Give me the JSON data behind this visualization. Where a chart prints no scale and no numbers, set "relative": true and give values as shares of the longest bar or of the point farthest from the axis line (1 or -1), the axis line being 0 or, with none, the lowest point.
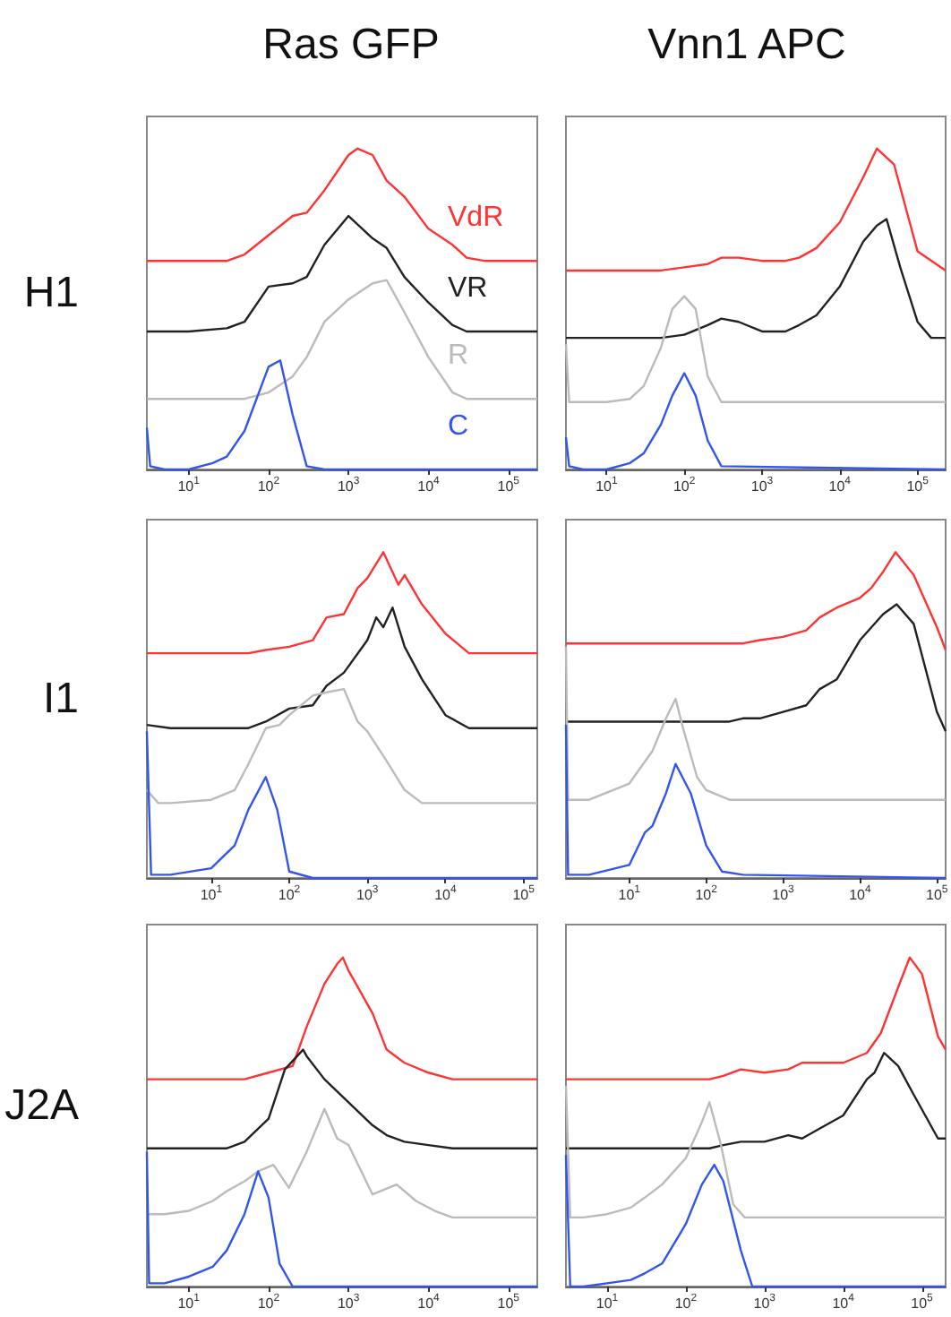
{
  "chart_data": [
    {
      "type": "line",
      "title": "Ras GFP",
      "ylabel": "H1",
      "relative": true,
      "log": "x",
      "tick_labels": "x",
      "marker": "none",
      "xlim": [
        3,
        230000
      ],
      "xticks": [
        {
          "value": 10,
          "label": "10$^{1}$"
        },
        {
          "value": 100,
          "label": "10$^{2}$"
        },
        {
          "value": 1000,
          "label": "10$^{3}$"
        },
        {
          "value": 10000,
          "label": "10$^{4}$"
        },
        {
          "value": 100000,
          "label": "10$^{5}$"
        }
      ],
      "series": [
        {
          "name": "VdR",
          "color": "#ff3333",
          "x": [
            3,
            10,
            20,
            30,
            50,
            100,
            200,
            300,
            500,
            1000,
            1300,
            2000,
            3000,
            5000,
            10000,
            20000,
            30000,
            50000,
            230000
          ],
          "values": [
            0.65,
            0.65,
            0.65,
            0.65,
            0.67,
            0.73,
            0.79,
            0.8,
            0.87,
            0.98,
            1,
            0.98,
            0.9,
            0.85,
            0.75,
            0.7,
            0.66,
            0.65,
            0.65
          ]
        },
        {
          "name": "VR",
          "color": "#222222",
          "x": [
            3,
            10,
            30,
            50,
            100,
            200,
            300,
            500,
            1000,
            2000,
            3000,
            5000,
            10000,
            20000,
            30000,
            230000
          ],
          "values": [
            0.43,
            0.43,
            0.44,
            0.46,
            0.57,
            0.58,
            0.6,
            0.7,
            0.79,
            0.72,
            0.69,
            0.6,
            0.52,
            0.45,
            0.43,
            0.43
          ]
        },
        {
          "name": "R",
          "color": "#bbbbbb",
          "x": [
            3,
            50,
            100,
            200,
            300,
            500,
            1000,
            2000,
            3000,
            5000,
            10000,
            20000,
            30000,
            230000
          ],
          "values": [
            0.22,
            0.22,
            0.24,
            0.29,
            0.35,
            0.46,
            0.53,
            0.58,
            0.59,
            0.49,
            0.35,
            0.24,
            0.22,
            0.22
          ]
        },
        {
          "name": "C",
          "color": "#3355ee",
          "x": [
            3,
            3.3,
            5,
            10,
            20,
            30,
            50,
            100,
            140,
            200,
            300,
            500,
            230000
          ],
          "values": [
            0.13,
            0.01,
            0,
            0,
            0.02,
            0.04,
            0.12,
            0.32,
            0.34,
            0.17,
            0.01,
            0,
            0
          ]
        }
      ]
    },
    {
      "type": "line",
      "title": "Vnn1 APC",
      "relative": true,
      "log": "x",
      "tick_labels": "x",
      "marker": "none",
      "xlim": [
        3,
        230000
      ],
      "xticks": [
        {
          "value": 10,
          "label": "10$^{1}$"
        },
        {
          "value": 100,
          "label": "10$^{2}$"
        },
        {
          "value": 1000,
          "label": "10$^{3}$"
        },
        {
          "value": 10000,
          "label": "10$^{4}$"
        },
        {
          "value": 100000,
          "label": "10$^{5}$"
        }
      ],
      "series": [
        {
          "color": "#ff3333",
          "x": [
            3,
            50,
            100,
            200,
            300,
            500,
            1000,
            2000,
            3000,
            5000,
            10000,
            20000,
            30000,
            50000,
            100000,
            230000
          ],
          "values": [
            0.62,
            0.62,
            0.63,
            0.64,
            0.66,
            0.66,
            0.65,
            0.65,
            0.66,
            0.69,
            0.77,
            0.91,
            1,
            0.95,
            0.68,
            0.62
          ]
        },
        {
          "color": "#222222",
          "x": [
            3,
            50,
            100,
            200,
            300,
            500,
            1000,
            2000,
            3000,
            5000,
            10000,
            20000,
            30000,
            40000,
            60000,
            100000,
            150000,
            230000
          ],
          "values": [
            0.41,
            0.41,
            0.42,
            0.45,
            0.47,
            0.46,
            0.43,
            0.43,
            0.45,
            0.48,
            0.57,
            0.71,
            0.76,
            0.78,
            0.63,
            0.46,
            0.41,
            0.41
          ]
        },
        {
          "color": "#bbbbbb",
          "x": [
            3,
            3.3,
            5,
            10,
            20,
            30,
            50,
            70,
            100,
            140,
            200,
            300,
            230000
          ],
          "values": [
            0.39,
            0.21,
            0.21,
            0.21,
            0.22,
            0.26,
            0.38,
            0.5,
            0.54,
            0.5,
            0.29,
            0.21,
            0.21
          ]
        },
        {
          "color": "#3355ee",
          "x": [
            3,
            3.3,
            5,
            10,
            20,
            30,
            50,
            70,
            100,
            140,
            200,
            300,
            230000
          ],
          "values": [
            0.1,
            0.01,
            0,
            0,
            0.02,
            0.05,
            0.14,
            0.23,
            0.3,
            0.23,
            0.09,
            0.01,
            0
          ]
        }
      ]
    },
    {
      "type": "line",
      "ylabel": "I1",
      "relative": true,
      "log": "x",
      "tick_labels": "x",
      "marker": "none",
      "xlim": [
        1.5,
        150000
      ],
      "xticks": [
        {
          "value": 10,
          "label": "10$^{1}$"
        },
        {
          "value": 100,
          "label": "10$^{2}$"
        },
        {
          "value": 1000,
          "label": "10$^{3}$"
        },
        {
          "value": 10000,
          "label": "10$^{4}$"
        },
        {
          "value": 100000,
          "label": "10$^{5}$"
        }
      ],
      "series": [
        {
          "color": "#ff3333",
          "x": [
            1.5,
            30,
            50,
            100,
            200,
            300,
            500,
            750,
            1000,
            1600,
            2500,
            3000,
            5000,
            10000,
            20000,
            150000
          ],
          "values": [
            0.69,
            0.69,
            0.7,
            0.71,
            0.73,
            0.8,
            0.81,
            0.89,
            0.92,
            1,
            0.9,
            0.93,
            0.84,
            0.75,
            0.69,
            0.69
          ]
        },
        {
          "color": "#222222",
          "x": [
            1.5,
            3,
            10,
            20,
            30,
            50,
            100,
            200,
            300,
            500,
            1000,
            1300,
            1600,
            2100,
            3000,
            5000,
            10000,
            20000,
            150000
          ],
          "values": [
            0.47,
            0.46,
            0.46,
            0.46,
            0.46,
            0.48,
            0.52,
            0.53,
            0.59,
            0.63,
            0.73,
            0.8,
            0.77,
            0.83,
            0.71,
            0.61,
            0.5,
            0.46,
            0.46
          ]
        },
        {
          "color": "#bbbbbb",
          "x": [
            1.5,
            2.1,
            3,
            10,
            20,
            30,
            50,
            75,
            100,
            200,
            300,
            500,
            750,
            1000,
            1650,
            3000,
            5000,
            10000,
            150000
          ],
          "values": [
            0.27,
            0.23,
            0.23,
            0.24,
            0.27,
            0.35,
            0.46,
            0.47,
            0.5,
            0.56,
            0.57,
            0.58,
            0.48,
            0.45,
            0.37,
            0.27,
            0.23,
            0.23,
            0.23
          ]
        },
        {
          "color": "#3355ee",
          "x": [
            1.5,
            1.7,
            3,
            10,
            20,
            30,
            50,
            70,
            100,
            200,
            150000
          ],
          "values": [
            0.45,
            0.01,
            0.01,
            0.03,
            0.1,
            0.21,
            0.31,
            0.21,
            0.02,
            0,
            0
          ]
        }
      ]
    },
    {
      "type": "line",
      "relative": true,
      "log": "x",
      "tick_labels": "x",
      "marker": "none",
      "xlim": [
        1.5,
        130000
      ],
      "xticks": [
        {
          "value": 10,
          "label": "10$^{1}$"
        },
        {
          "value": 100,
          "label": "10$^{2}$"
        },
        {
          "value": 1000,
          "label": "10$^{3}$"
        },
        {
          "value": 10000,
          "label": "10$^{4}$"
        },
        {
          "value": 100000,
          "label": "10$^{5}$"
        }
      ],
      "series": [
        {
          "color": "#ff3333",
          "x": [
            1.5,
            200,
            300,
            500,
            1000,
            2000,
            3000,
            5000,
            10000,
            14000,
            20000,
            29000,
            50000,
            100000,
            130000
          ],
          "values": [
            0.72,
            0.72,
            0.72,
            0.73,
            0.74,
            0.76,
            0.8,
            0.83,
            0.86,
            0.89,
            0.94,
            1,
            0.93,
            0.77,
            0.7
          ]
        },
        {
          "color": "#222222",
          "x": [
            1.5,
            200,
            300,
            500,
            1000,
            2000,
            3000,
            5000,
            10000,
            20000,
            30000,
            50000,
            100000,
            130000
          ],
          "values": [
            0.48,
            0.48,
            0.49,
            0.49,
            0.51,
            0.53,
            0.58,
            0.61,
            0.73,
            0.81,
            0.84,
            0.78,
            0.51,
            0.45
          ]
        },
        {
          "color": "#bbbbbb",
          "x": [
            1.5,
            1.6,
            3,
            10,
            20,
            30,
            40,
            50,
            76,
            100,
            200,
            130000
          ],
          "values": [
            0.71,
            0.24,
            0.24,
            0.29,
            0.39,
            0.49,
            0.55,
            0.46,
            0.31,
            0.27,
            0.24,
            0.24
          ]
        },
        {
          "color": "#3355ee",
          "x": [
            1.5,
            1.6,
            3,
            10,
            16,
            20,
            30,
            40,
            63,
            100,
            160,
            300,
            130000
          ],
          "values": [
            0.47,
            0.01,
            0.01,
            0.04,
            0.14,
            0.16,
            0.26,
            0.35,
            0.26,
            0.1,
            0.02,
            0.01,
            0
          ]
        }
      ]
    },
    {
      "type": "line",
      "ylabel": "J2A",
      "relative": true,
      "log": "x",
      "tick_labels": "x",
      "marker": "none",
      "xlim": [
        3,
        230000
      ],
      "xticks": [
        {
          "value": 10,
          "label": "10$^{1}$"
        },
        {
          "value": 100,
          "label": "10$^{2}$"
        },
        {
          "value": 1000,
          "label": "10$^{3}$"
        },
        {
          "value": 10000,
          "label": "10$^{4}$"
        },
        {
          "value": 100000,
          "label": "10$^{5}$"
        }
      ],
      "series": [
        {
          "color": "#ff3333",
          "x": [
            3,
            50,
            100,
            200,
            300,
            500,
            720,
            850,
            1000,
            2000,
            3000,
            5000,
            10000,
            20000,
            230000
          ],
          "values": [
            0.63,
            0.63,
            0.65,
            0.67,
            0.79,
            0.92,
            0.98,
            1,
            0.96,
            0.83,
            0.72,
            0.68,
            0.65,
            0.63,
            0.63
          ]
        },
        {
          "color": "#222222",
          "x": [
            3,
            30,
            50,
            100,
            160,
            270,
            300,
            500,
            1000,
            2000,
            3000,
            5000,
            10000,
            20000,
            230000
          ],
          "values": [
            0.42,
            0.42,
            0.44,
            0.51,
            0.66,
            0.72,
            0.7,
            0.63,
            0.56,
            0.49,
            0.46,
            0.44,
            0.43,
            0.42,
            0.42
          ]
        },
        {
          "color": "#bbbbbb",
          "x": [
            3,
            5,
            10,
            20,
            30,
            50,
            74,
            115,
            180,
            300,
            500,
            720,
            1000,
            2000,
            4000,
            7000,
            12000,
            20000,
            230000
          ],
          "values": [
            0.22,
            0.22,
            0.23,
            0.26,
            0.29,
            0.32,
            0.35,
            0.37,
            0.3,
            0.41,
            0.54,
            0.45,
            0.43,
            0.28,
            0.31,
            0.26,
            0.23,
            0.21,
            0.21
          ]
        },
        {
          "color": "#3355ee",
          "x": [
            3,
            3.2,
            5,
            10,
            20,
            30,
            50,
            74,
            100,
            137,
            200,
            230000
          ],
          "values": [
            0.41,
            0.01,
            0.01,
            0.03,
            0.06,
            0.11,
            0.22,
            0.35,
            0.27,
            0.07,
            0,
            0
          ]
        }
      ]
    },
    {
      "type": "line",
      "relative": true,
      "log": "x",
      "tick_labels": "x",
      "marker": "none",
      "xlim": [
        3,
        200000
      ],
      "xticks": [
        {
          "value": 10,
          "label": "10$^{1}$"
        },
        {
          "value": 100,
          "label": "10$^{2}$"
        },
        {
          "value": 1000,
          "label": "10$^{3}$"
        },
        {
          "value": 10000,
          "label": "10$^{4}$"
        },
        {
          "value": 100000,
          "label": "10$^{5}$"
        }
      ],
      "series": [
        {
          "color": "#ff3333",
          "x": [
            3,
            100,
            200,
            300,
            500,
            1000,
            2000,
            3000,
            5000,
            10000,
            20000,
            30000,
            50000,
            70000,
            100000,
            160000,
            200000
          ],
          "values": [
            0.63,
            0.63,
            0.63,
            0.64,
            0.66,
            0.65,
            0.66,
            0.68,
            0.68,
            0.68,
            0.71,
            0.77,
            0.91,
            1,
            0.95,
            0.76,
            0.72
          ]
        },
        {
          "color": "#222222",
          "x": [
            3,
            200,
            300,
            500,
            1000,
            2000,
            3000,
            5000,
            10000,
            20000,
            25000,
            33000,
            50000,
            80000,
            160000,
            200000
          ],
          "values": [
            0.42,
            0.42,
            0.43,
            0.44,
            0.44,
            0.46,
            0.45,
            0.48,
            0.52,
            0.63,
            0.65,
            0.71,
            0.67,
            0.58,
            0.45,
            0.45
          ]
        },
        {
          "color": "#bbbbbb",
          "x": [
            3,
            3.4,
            5,
            10,
            20,
            30,
            50,
            100,
            160,
            200,
            280,
            400,
            560,
            200000
          ],
          "values": [
            0.61,
            0.21,
            0.21,
            0.22,
            0.24,
            0.27,
            0.31,
            0.39,
            0.5,
            0.56,
            0.43,
            0.25,
            0.21,
            0.21
          ]
        },
        {
          "color": "#3355ee",
          "x": [
            3,
            3.4,
            5,
            10,
            20,
            30,
            50,
            100,
            160,
            230,
            300,
            500,
            700,
            200000
          ],
          "values": [
            0.4,
            0,
            0,
            0.01,
            0.02,
            0.04,
            0.07,
            0.19,
            0.31,
            0.37,
            0.32,
            0.11,
            0,
            0
          ]
        }
      ]
    }
  ]
}
